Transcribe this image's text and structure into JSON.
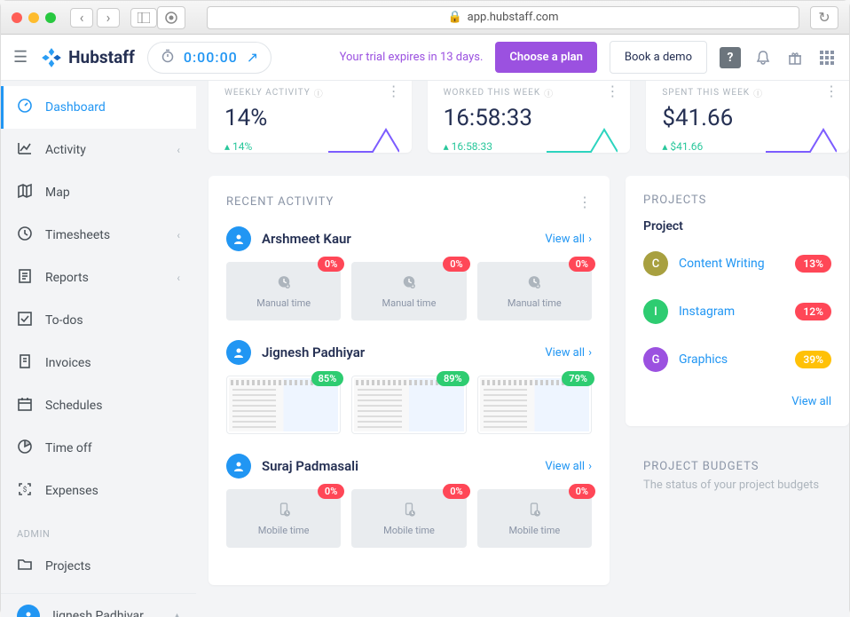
{
  "browser": {
    "url": "app.hubstaff.com",
    "lock": true
  },
  "app": {
    "name": "Hubstaff",
    "logo_color": "#2a9df4"
  },
  "timer": {
    "time": "0:00:00"
  },
  "trial": {
    "text": "Your trial expires in 13 days."
  },
  "buttons": {
    "choose": "Choose a plan",
    "demo": "Book a demo"
  },
  "header_help": "?",
  "sidebar": {
    "items": [
      {
        "label": "Dashboard",
        "icon": "gauge",
        "active": true
      },
      {
        "label": "Activity",
        "icon": "chart",
        "chev": true
      },
      {
        "label": "Map",
        "icon": "map"
      },
      {
        "label": "Timesheets",
        "icon": "clock",
        "chev": true
      },
      {
        "label": "Reports",
        "icon": "report",
        "chev": true
      },
      {
        "label": "To-dos",
        "icon": "check"
      },
      {
        "label": "Invoices",
        "icon": "invoice"
      },
      {
        "label": "Schedules",
        "icon": "calendar"
      },
      {
        "label": "Time off",
        "icon": "pie"
      },
      {
        "label": "Expenses",
        "icon": "scan"
      }
    ],
    "section": "ADMIN",
    "admin": [
      {
        "label": "Projects",
        "icon": "folder"
      }
    ],
    "user": "Jignesh Padhiyar"
  },
  "stats": [
    {
      "title": "WEEKLY ACTIVITY",
      "value": "14%",
      "delta": "14%",
      "chart_color": "#7c5cff"
    },
    {
      "title": "WORKED THIS WEEK",
      "value": "16:58:33",
      "delta": "16:58:33",
      "chart_color": "#2dd4bf"
    },
    {
      "title": "SPENT THIS WEEK",
      "value": "$41.66",
      "delta": "$41.66",
      "chart_color": "#7c5cff"
    }
  ],
  "recent": {
    "title": "RECENT ACTIVITY",
    "view_all": "View all",
    "users": [
      {
        "name": "Arshmeet Kaur",
        "thumbs": [
          {
            "type": "manual",
            "label": "Manual time",
            "pct": "0%",
            "badge_color": "#ff4757"
          },
          {
            "type": "manual",
            "label": "Manual time",
            "pct": "0%",
            "badge_color": "#ff4757"
          },
          {
            "type": "manual",
            "label": "Manual time",
            "pct": "0%",
            "badge_color": "#ff4757"
          }
        ]
      },
      {
        "name": "Jignesh Padhiyar",
        "thumbs": [
          {
            "type": "shot",
            "pct": "85%",
            "badge_color": "#2ecc71"
          },
          {
            "type": "shot",
            "pct": "89%",
            "badge_color": "#2ecc71"
          },
          {
            "type": "shot",
            "pct": "79%",
            "badge_color": "#2ecc71"
          }
        ]
      },
      {
        "name": "Suraj Padmasali",
        "thumbs": [
          {
            "type": "mobile",
            "label": "Mobile time",
            "pct": "0%",
            "badge_color": "#ff4757"
          },
          {
            "type": "mobile",
            "label": "Mobile time",
            "pct": "0%",
            "badge_color": "#ff4757"
          },
          {
            "type": "mobile",
            "label": "Mobile time",
            "pct": "0%",
            "badge_color": "#ff4757"
          }
        ]
      }
    ]
  },
  "projects": {
    "title": "PROJECTS",
    "col": "Project",
    "view_all": "View all",
    "items": [
      {
        "letter": "C",
        "name": "Content Writing",
        "pct": "13%",
        "av_color": "#a8a040",
        "badge_color": "#ff4757"
      },
      {
        "letter": "I",
        "name": "Instagram",
        "pct": "12%",
        "av_color": "#2ecc71",
        "badge_color": "#ff4757"
      },
      {
        "letter": "G",
        "name": "Graphics",
        "pct": "39%",
        "av_color": "#9b51e0",
        "badge_color": "#ffc107"
      }
    ]
  },
  "budgets": {
    "title": "PROJECT BUDGETS",
    "sub": "The status of your project budgets"
  }
}
